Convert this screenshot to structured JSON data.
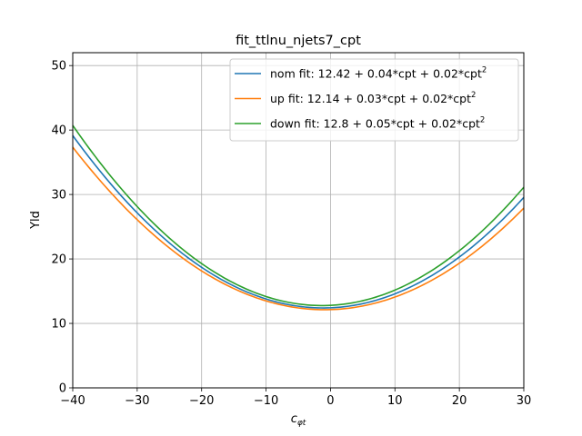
{
  "chart_data": {
    "type": "line",
    "title": "fit_ttlnu_njets7_cpt",
    "xlabel": "c",
    "xlabel_sub": "φt",
    "ylabel": "Yld",
    "xlim": [
      -40,
      30
    ],
    "ylim": [
      0,
      52
    ],
    "grid": true,
    "legend_position": "top-right",
    "x_ticks": [
      -40,
      -30,
      -20,
      -10,
      0,
      10,
      20,
      30
    ],
    "x_tick_labels": [
      "−40",
      "−30",
      "−20",
      "−10",
      "0",
      "10",
      "20",
      "30"
    ],
    "y_ticks": [
      0,
      10,
      20,
      30,
      40,
      50
    ],
    "y_tick_labels": [
      "0",
      "10",
      "20",
      "30",
      "40",
      "50"
    ],
    "series": [
      {
        "name": "nom fit: 12.42 + 0.04*cpt + 0.02*cpt",
        "name_sup": "2",
        "coefficients": [
          12.42,
          0.04,
          0.0177
        ],
        "color": "#1f77b4"
      },
      {
        "name": "up fit: 12.14 + 0.03*cpt + 0.02*cpt",
        "name_sup": "2",
        "coefficients": [
          12.14,
          0.03,
          0.0165
        ],
        "color": "#ff7f0e"
      },
      {
        "name": "down fit: 12.8 + 0.05*cpt + 0.02*cpt",
        "name_sup": "2",
        "coefficients": [
          12.8,
          0.05,
          0.0187
        ],
        "color": "#2ca02c"
      }
    ]
  }
}
